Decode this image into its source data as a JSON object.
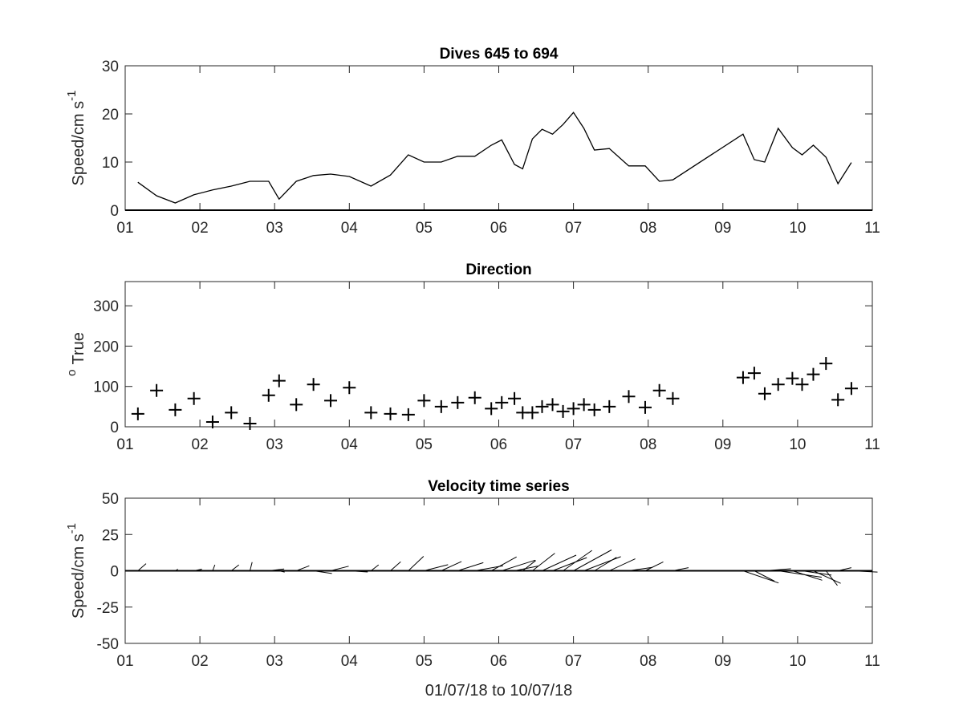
{
  "chart_data": [
    {
      "type": "line",
      "title": "Dives 645 to 694",
      "ylabel": "Speed/cm s",
      "ylabel_exponent": "-1",
      "xlim": [
        1,
        11
      ],
      "ylim": [
        0,
        30
      ],
      "x_ticks": [
        1,
        2,
        3,
        4,
        5,
        6,
        7,
        8,
        9,
        10,
        11
      ],
      "x_tick_labels": [
        "01",
        "02",
        "03",
        "04",
        "05",
        "06",
        "07",
        "08",
        "09",
        "10",
        "11"
      ],
      "y_ticks": [
        0,
        10,
        20,
        30
      ],
      "y_tick_labels": [
        "0",
        "10",
        "20",
        "30"
      ],
      "series": [
        {
          "x": [
            1.17,
            1.42,
            1.67,
            1.92,
            2.17,
            2.42,
            2.67,
            2.92,
            3.06,
            3.29,
            3.52,
            3.75,
            4.0,
            4.29,
            4.55,
            4.79,
            5.0,
            5.23,
            5.45,
            5.68,
            5.9,
            6.04,
            6.21,
            6.32,
            6.45,
            6.58,
            6.72,
            6.86,
            7.0,
            7.14,
            7.28,
            7.48,
            7.74,
            7.96,
            8.15,
            8.33,
            9.27,
            9.42,
            9.56,
            9.74,
            9.93,
            10.06,
            10.21,
            10.38,
            10.54,
            10.72
          ],
          "y": [
            5.8,
            3.0,
            1.5,
            3.2,
            4.2,
            5.0,
            6.0,
            6.0,
            2.3,
            6.0,
            7.2,
            7.5,
            7.0,
            5.0,
            7.3,
            11.5,
            10.0,
            10.0,
            11.2,
            11.2,
            13.5,
            14.6,
            9.5,
            8.6,
            14.8,
            16.8,
            15.8,
            17.8,
            20.3,
            17.0,
            12.5,
            12.8,
            9.2,
            9.2,
            6.0,
            6.3,
            15.8,
            10.5,
            10.0,
            17.0,
            13.0,
            11.5,
            13.5,
            11.0,
            5.5,
            9.9
          ]
        }
      ]
    },
    {
      "type": "scatter",
      "title": "Direction",
      "ylabel": "True",
      "ylabel_prefix": "o",
      "xlim": [
        1,
        11
      ],
      "ylim": [
        0,
        360
      ],
      "x_ticks": [
        1,
        2,
        3,
        4,
        5,
        6,
        7,
        8,
        9,
        10,
        11
      ],
      "x_tick_labels": [
        "01",
        "02",
        "03",
        "04",
        "05",
        "06",
        "07",
        "08",
        "09",
        "10",
        "11"
      ],
      "y_ticks": [
        0,
        100,
        200,
        300
      ],
      "y_tick_labels": [
        "0",
        "100",
        "200",
        "300"
      ],
      "series": [
        {
          "x": [
            1.17,
            1.42,
            1.67,
            1.92,
            2.17,
            2.42,
            2.67,
            2.92,
            3.06,
            3.29,
            3.52,
            3.75,
            4.0,
            4.29,
            4.55,
            4.79,
            5.0,
            5.23,
            5.45,
            5.68,
            5.9,
            6.04,
            6.21,
            6.32,
            6.45,
            6.58,
            6.72,
            6.86,
            7.0,
            7.14,
            7.28,
            7.48,
            7.74,
            7.96,
            8.15,
            8.33,
            9.27,
            9.42,
            9.56,
            9.74,
            9.93,
            10.06,
            10.21,
            10.38,
            10.54,
            10.72
          ],
          "y": [
            32,
            90,
            42,
            70,
            12,
            35,
            8,
            78,
            114,
            55,
            105,
            65,
            97,
            35,
            32,
            30,
            65,
            50,
            60,
            72,
            45,
            60,
            70,
            35,
            35,
            50,
            55,
            38,
            45,
            55,
            42,
            50,
            75,
            48,
            90,
            70,
            122,
            133,
            82,
            105,
            120,
            105,
            130,
            157,
            67,
            95
          ]
        }
      ]
    },
    {
      "type": "quiver",
      "title": "Velocity time series",
      "ylabel": "Speed/cm s",
      "ylabel_exponent": "-1",
      "xlabel": "01/07/18 to 10/07/18",
      "xlim": [
        1,
        11
      ],
      "ylim": [
        -50,
        50
      ],
      "x_ticks": [
        1,
        2,
        3,
        4,
        5,
        6,
        7,
        8,
        9,
        10,
        11
      ],
      "x_tick_labels": [
        "01",
        "02",
        "03",
        "04",
        "05",
        "06",
        "07",
        "08",
        "09",
        "10",
        "11"
      ],
      "y_ticks": [
        -50,
        -25,
        0,
        25,
        50
      ],
      "y_tick_labels": [
        "-50",
        "-25",
        "0",
        "25",
        "50"
      ],
      "series": [
        {
          "x": [
            1.17,
            1.42,
            1.67,
            1.92,
            2.17,
            2.42,
            2.67,
            2.92,
            3.06,
            3.29,
            3.52,
            3.75,
            4.0,
            4.29,
            4.55,
            4.79,
            5.0,
            5.23,
            5.45,
            5.68,
            5.9,
            6.04,
            6.21,
            6.32,
            6.45,
            6.58,
            6.72,
            6.86,
            7.0,
            7.14,
            7.28,
            7.48,
            7.74,
            7.96,
            8.15,
            8.33,
            9.27,
            9.42,
            9.56,
            9.74,
            9.93,
            10.06,
            10.21,
            10.38,
            10.54,
            10.72
          ],
          "speed": [
            5.8,
            3.0,
            1.5,
            3.2,
            4.2,
            5.0,
            6.0,
            6.0,
            2.3,
            6.0,
            7.2,
            7.5,
            7.0,
            5.0,
            7.3,
            11.5,
            10.0,
            10.0,
            11.2,
            11.2,
            13.5,
            14.6,
            9.5,
            8.6,
            14.8,
            16.8,
            15.8,
            17.8,
            20.3,
            17.0,
            12.5,
            12.8,
            9.2,
            9.2,
            6.0,
            6.3,
            15.8,
            10.5,
            10.0,
            17.0,
            13.0,
            11.5,
            13.5,
            11.0,
            5.5,
            9.9
          ],
          "direction": [
            32,
            90,
            42,
            70,
            12,
            35,
            8,
            78,
            114,
            55,
            105,
            65,
            97,
            35,
            32,
            30,
            65,
            50,
            60,
            72,
            45,
            60,
            70,
            35,
            35,
            50,
            55,
            38,
            45,
            55,
            42,
            50,
            75,
            48,
            90,
            70,
            122,
            133,
            82,
            105,
            120,
            105,
            130,
            157,
            67,
            95
          ]
        }
      ]
    }
  ]
}
